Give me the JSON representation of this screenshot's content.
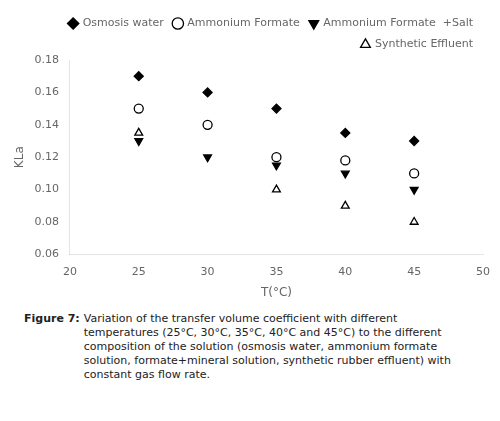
{
  "chart_data": {
    "type": "scatter",
    "x": [
      25,
      30,
      35,
      40,
      45
    ],
    "series": [
      {
        "name": "Osmosis water",
        "color": "black",
        "marker": "diamond",
        "values": [
          0.17,
          0.16,
          0.15,
          0.135,
          0.13
        ]
      },
      {
        "name": "Ammonium Formate",
        "color": "black",
        "marker": "circle_open",
        "values": [
          0.15,
          0.14,
          0.12,
          0.118,
          0.11
        ]
      },
      {
        "name": "Ammonium Formate  +Salt",
        "color": "black",
        "marker": "triangle_down",
        "values": [
          0.13,
          0.12,
          0.115,
          0.11,
          0.1
        ]
      },
      {
        "name": "Synthetic Effluent",
        "color": "black",
        "marker": "triangle_up_open",
        "values": [
          0.135,
          null,
          0.1,
          0.09,
          0.08
        ]
      }
    ],
    "x_label": "T(°C)",
    "y_label": "KLa",
    "xlim": [
      20,
      50
    ],
    "ylim": [
      0.06,
      0.18
    ],
    "xticks": [
      20,
      25,
      30,
      35,
      40,
      45,
      50
    ],
    "yticks": [
      0.06,
      0.08,
      {
        "value": 0.1,
        "label": "0.10"
      },
      0.12,
      0.14,
      0.16,
      0.18
    ],
    "grid": false,
    "legend": "upper right",
    "caption_label": "Figure 7:",
    "caption": "Variation of the transfer volume coefficient with different\ntemperatures (25°C, 30°C, 35°C, 40°C and 45°C) to the different\ncomposition of the solution (osmosis water, ammonium formate\nsolution, formate+mineral solution, synthetic rubber effluent) with\nconstant gas flow rate."
  }
}
